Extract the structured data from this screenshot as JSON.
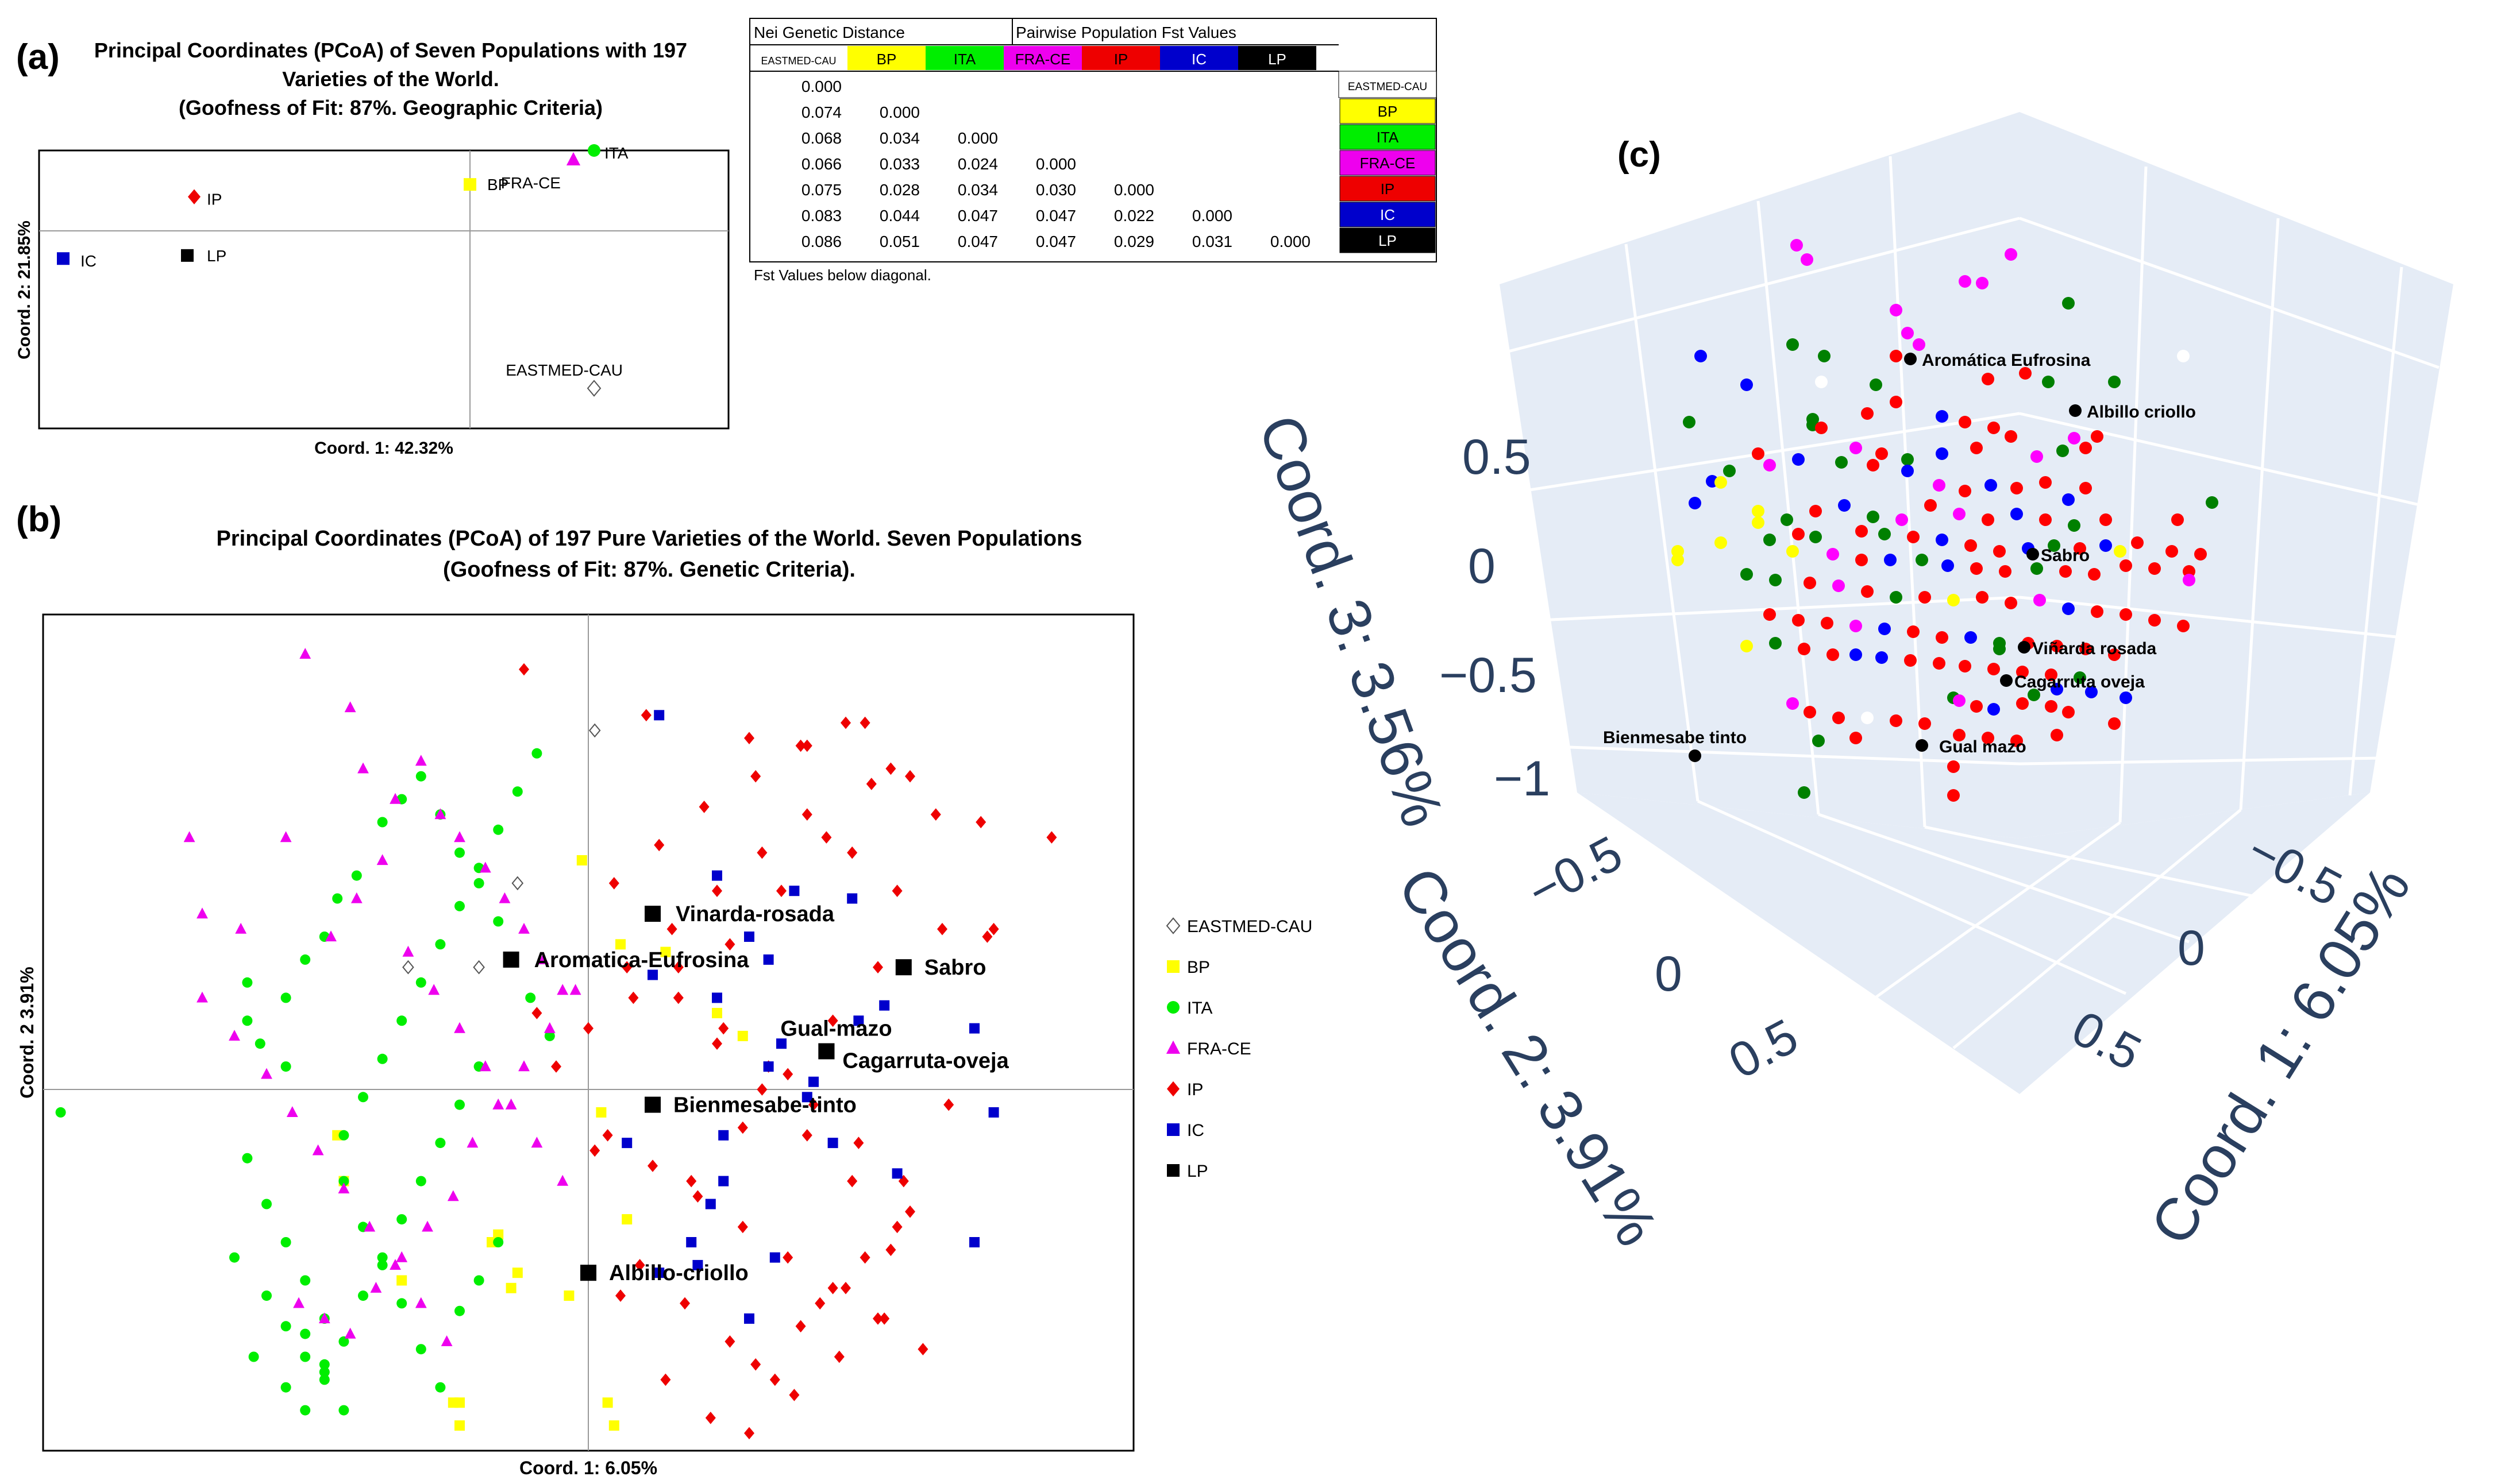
{
  "panel_labels": {
    "a": "(a)",
    "b": "(b)",
    "c": "(c)"
  },
  "palette": {
    "EASTMED-CAU": "#ffffff",
    "BP": "#ffff00",
    "ITA": "#00ee00",
    "FRA-CE": "#ee00ee",
    "IP": "#ee0000",
    "IC": "#0000cc",
    "LP": "#000000"
  },
  "panel_a": {
    "title": [
      "Principal Coordinates (PCoA) of Seven Populations with 197",
      "Varieties of the World.",
      "(Goofness of Fit: 87%. Geographic Criteria)"
    ],
    "chart_data": {
      "type": "scatter",
      "xlabel": "Coord. 1: 42.32%",
      "ylabel": "Coord. 2: 21.85%",
      "xlim": [
        -0.05,
        0.05
      ],
      "ylim": [
        -0.03,
        0.015
      ],
      "points": [
        {
          "name": "IP",
          "x": -0.0275,
          "y": 0.0075,
          "shape": "diamond"
        },
        {
          "name": "IC",
          "x": -0.0465,
          "y": -0.0025,
          "shape": "square"
        },
        {
          "name": "LP",
          "x": -0.0285,
          "y": -0.002,
          "shape": "square"
        },
        {
          "name": "BP",
          "x": 0.0125,
          "y": 0.0095,
          "shape": "square"
        },
        {
          "name": "FRA-CE",
          "x": 0.0275,
          "y": 0.0135,
          "shape": "triangle"
        },
        {
          "name": "ITA",
          "x": 0.0305,
          "y": 0.015,
          "shape": "circle"
        },
        {
          "name": "EASTMED-CAU",
          "x": 0.0305,
          "y": -0.0235,
          "shape": "diamond-open"
        }
      ]
    }
  },
  "table": {
    "header_left": "Nei Genetic Distance",
    "header_right": "Pairwise Population Fst Values",
    "columns": [
      "EASTMED-CAU",
      "BP",
      "ITA",
      "FRA-CE",
      "IP",
      "IC",
      "LP"
    ],
    "rows": [
      [
        "0.000"
      ],
      [
        "0.074",
        "0.000"
      ],
      [
        "0.068",
        "0.034",
        "0.000"
      ],
      [
        "0.066",
        "0.033",
        "0.024",
        "0.000"
      ],
      [
        "0.075",
        "0.028",
        "0.034",
        "0.030",
        "0.000"
      ],
      [
        "0.083",
        "0.044",
        "0.047",
        "0.047",
        "0.022",
        "0.000"
      ],
      [
        "0.086",
        "0.051",
        "0.047",
        "0.047",
        "0.029",
        "0.031",
        "0.000"
      ]
    ],
    "row_labels": [
      "EASTMED-CAU",
      "BP",
      "ITA",
      "FRA-CE",
      "IP",
      "IC",
      "LP"
    ],
    "note": "Fst Values below diagonal."
  },
  "panel_b": {
    "title": [
      "Principal Coordinates (PCoA) of 197 Pure Varieties of the World. Seven Populations",
      "(Goofness of Fit: 87%. Genetic Criteria)."
    ],
    "legend": [
      "EASTMED-CAU",
      "BP",
      "ITA",
      "FRA-CE",
      "IP",
      "IC",
      "LP"
    ],
    "chart_data": {
      "type": "scatter",
      "xlabel": "Coord. 1: 6.05%",
      "ylabel": "Coord. 2 3.91%",
      "xlim": [
        -1,
        1
      ],
      "ylim": [
        -1,
        1
      ],
      "highlighted": [
        {
          "name": "Vinarda-rosada",
          "x": 0.1,
          "y": 0.23
        },
        {
          "name": "Aromatica-Eufrosina",
          "x": -0.12,
          "y": 0.17
        },
        {
          "name": "Sabro",
          "x": 0.49,
          "y": 0.16
        },
        {
          "name": "Gual-mazo",
          "x": 0.37,
          "y": 0.05
        },
        {
          "name": "Cagarruta-oveja",
          "x": 0.37,
          "y": 0.05
        },
        {
          "name": "Bienmesabe-tinto",
          "x": 0.1,
          "y": -0.02
        },
        {
          "name": "Albillo-criollo",
          "x": 0.0,
          "y": -0.24
        }
      ],
      "series": [
        {
          "name": "EASTMED-CAU",
          "x": [
            0.01,
            -0.11,
            -0.17,
            -0.28
          ],
          "y": [
            0.47,
            0.27,
            0.16,
            0.16
          ]
        },
        {
          "name": "BP",
          "x": [
            -0.01,
            0.05,
            0.12,
            0.2,
            0.24,
            0.02,
            -0.39,
            -0.38,
            -0.29,
            -0.14,
            -0.11,
            -0.12,
            -0.21,
            -0.2,
            0.03,
            0.04,
            0.06,
            -0.03,
            -0.2,
            -0.15
          ],
          "y": [
            0.3,
            0.19,
            0.18,
            0.1,
            0.07,
            -0.03,
            -0.06,
            -0.12,
            -0.25,
            -0.19,
            -0.24,
            -0.26,
            -0.41,
            -0.44,
            -0.41,
            -0.44,
            -0.17,
            -0.27,
            -0.41,
            -0.2
          ]
        },
        {
          "name": "ITA",
          "x": [
            -0.82,
            -0.53,
            -0.53,
            -0.51,
            -0.47,
            -0.47,
            -0.44,
            -0.41,
            -0.39,
            -0.36,
            -0.32,
            -0.29,
            -0.26,
            -0.23,
            -0.2,
            -0.17,
            -0.14,
            -0.12,
            -0.09,
            -0.06,
            -0.53,
            -0.5,
            -0.47,
            -0.44,
            -0.41,
            -0.38,
            -0.35,
            -0.32,
            -0.29,
            -0.26,
            -0.23,
            -0.2,
            -0.17,
            -0.14,
            -0.44,
            -0.41,
            -0.38,
            -0.35,
            -0.32,
            -0.29,
            -0.26,
            -0.23,
            -0.2,
            -0.17,
            -0.55,
            -0.5,
            -0.47,
            -0.44,
            -0.41,
            -0.38,
            -0.35,
            -0.32,
            -0.29,
            -0.26,
            -0.23,
            -0.2,
            -0.17,
            -0.14,
            -0.11,
            -0.08,
            -0.52,
            -0.47,
            -0.44,
            -0.41,
            -0.38
          ],
          "y": [
            -0.03,
            0.14,
            0.09,
            0.06,
            0.12,
            0.03,
            0.17,
            0.2,
            0.25,
            0.28,
            0.35,
            0.38,
            0.41,
            0.36,
            0.31,
            0.27,
            0.22,
            0.17,
            0.12,
            0.07,
            -0.09,
            -0.15,
            -0.2,
            -0.25,
            -0.3,
            -0.12,
            -0.18,
            -0.23,
            -0.28,
            -0.34,
            -0.39,
            -0.29,
            -0.25,
            -0.2,
            -0.32,
            -0.36,
            -0.42,
            -0.27,
            -0.22,
            -0.17,
            -0.12,
            -0.07,
            -0.02,
            0.03,
            -0.22,
            -0.27,
            -0.31,
            -0.35,
            -0.38,
            -0.06,
            -0.01,
            0.04,
            0.09,
            0.14,
            0.19,
            0.24,
            0.29,
            0.34,
            0.39,
            0.44,
            -0.35,
            -0.39,
            -0.42,
            -0.37,
            -0.33
          ]
        },
        {
          "name": "FRA-CE",
          "x": [
            -0.62,
            -0.6,
            -0.54,
            -0.47,
            -0.44,
            -0.37,
            -0.35,
            -0.3,
            -0.26,
            -0.23,
            -0.2,
            -0.16,
            -0.13,
            -0.1,
            -0.07,
            -0.04,
            -0.6,
            -0.55,
            -0.5,
            -0.46,
            -0.42,
            -0.38,
            -0.34,
            -0.3,
            -0.26,
            -0.22,
            -0.18,
            -0.14,
            -0.1,
            -0.06,
            -0.02,
            -0.4,
            -0.36,
            -0.32,
            -0.28,
            -0.24,
            -0.2,
            -0.16,
            -0.12,
            -0.08,
            -0.04,
            -0.45,
            -0.41,
            -0.37,
            -0.33,
            -0.29,
            -0.25,
            -0.21
          ],
          "y": [
            0.33,
            0.23,
            0.21,
            0.33,
            0.57,
            0.5,
            0.42,
            0.38,
            0.43,
            0.36,
            0.33,
            0.29,
            0.25,
            0.21,
            0.17,
            0.13,
            0.12,
            0.07,
            0.02,
            -0.03,
            -0.08,
            -0.13,
            -0.18,
            -0.23,
            -0.28,
            -0.33,
            -0.07,
            -0.02,
            0.03,
            0.08,
            0.13,
            0.2,
            0.25,
            0.3,
            0.18,
            0.13,
            0.08,
            0.03,
            -0.02,
            -0.07,
            -0.12,
            -0.28,
            -0.3,
            -0.32,
            -0.26,
            -0.22,
            -0.18,
            -0.14
          ]
        },
        {
          "name": "IP",
          "x": [
            0.44,
            0.72,
            0.61,
            0.63,
            0.62,
            0.43,
            0.5,
            0.34,
            0.25,
            0.04,
            0.11,
            0.18,
            0.26,
            0.33,
            0.4,
            0.47,
            0.54,
            0.06,
            0.13,
            0.2,
            0.27,
            0.34,
            0.41,
            0.48,
            0.55,
            0.0,
            0.07,
            0.14,
            0.21,
            0.28,
            0.35,
            0.42,
            0.49,
            0.56,
            0.03,
            0.1,
            0.17,
            0.24,
            0.31,
            0.38,
            0.45,
            0.52,
            0.08,
            0.15,
            0.22,
            0.29,
            0.36,
            0.43,
            0.5,
            0.12,
            0.19,
            0.26,
            0.33,
            0.4,
            0.47,
            0.18,
            0.25,
            0.32,
            0.39,
            0.46,
            0.17,
            -0.08,
            -0.05,
            0.01,
            0.05,
            0.16,
            0.24,
            0.31,
            0.38,
            0.45,
            -0.1,
            0.09,
            0.2,
            0.27,
            0.34,
            0.41,
            0.48,
            0.14,
            0.22,
            0.3,
            0.37,
            0.44
          ],
          "y": [
            0.62,
            0.33,
            0.35,
            0.21,
            0.2,
            0.48,
            0.41,
            0.45,
            0.46,
            0.27,
            0.32,
            0.37,
            0.41,
            0.45,
            0.48,
            0.42,
            0.36,
            0.16,
            0.21,
            0.26,
            0.31,
            0.36,
            0.31,
            0.26,
            0.21,
            0.08,
            0.12,
            0.16,
            0.08,
            0.03,
            -0.02,
            -0.07,
            -0.12,
            -0.02,
            -0.06,
            -0.1,
            -0.14,
            -0.18,
            -0.22,
            -0.26,
            -0.3,
            -0.34,
            -0.23,
            -0.28,
            -0.33,
            -0.38,
            -0.28,
            -0.22,
            -0.16,
            -0.38,
            -0.43,
            -0.36,
            -0.31,
            -0.26,
            -0.21,
            -0.5,
            -0.45,
            -0.4,
            -0.35,
            -0.3,
            -0.54,
            0.1,
            0.03,
            -0.08,
            -0.27,
            -0.12,
            -0.05,
            0.02,
            0.09,
            0.16,
            0.55,
            0.49,
            0.06,
            0.0,
            -0.06,
            -0.12,
            -0.18,
            0.12,
            0.19,
            0.26,
            0.33,
            0.4
          ]
        },
        {
          "name": "IC",
          "x": [
            0.11,
            0.2,
            0.2,
            0.25,
            0.32,
            0.41,
            0.46,
            0.6,
            0.63,
            0.6,
            0.48,
            0.35,
            0.28,
            0.19,
            0.21,
            0.16,
            0.11,
            0.06,
            0.28,
            0.3,
            0.34,
            0.42,
            0.38,
            0.25,
            0.17,
            0.21,
            0.29,
            0.1
          ],
          "y": [
            0.49,
            0.28,
            0.12,
            0.2,
            0.26,
            0.25,
            0.11,
            0.08,
            -0.03,
            -0.2,
            -0.11,
            0.01,
            0.03,
            -0.15,
            -0.12,
            -0.2,
            -0.24,
            -0.07,
            0.17,
            0.06,
            -0.01,
            0.09,
            -0.07,
            -0.3,
            -0.23,
            -0.06,
            -0.22,
            0.15
          ]
        },
        {
          "name": "LP",
          "x": [],
          "y": []
        }
      ]
    }
  },
  "panel_c": {
    "chart_data": {
      "type": "scatter",
      "axis_titles": [
        "Coord. 3: 3.56%",
        "Coord. 2: 3.91%",
        "Coord. 1: 6.05%"
      ],
      "z_ticks": [
        "0.5",
        "0",
        "−0.5",
        "−1"
      ],
      "y_ticks": [
        "−0.5",
        "0",
        "0.5"
      ],
      "x_ticks": [
        "−0.5",
        "0",
        "0.5"
      ],
      "labels": [
        "Aromática Eufrosina",
        "Albillo criollo",
        "Sabro",
        "Viñarda rosada",
        "Cagarruta oveja",
        "Gual mazo",
        "Bienmesabe tinto"
      ]
    }
  }
}
